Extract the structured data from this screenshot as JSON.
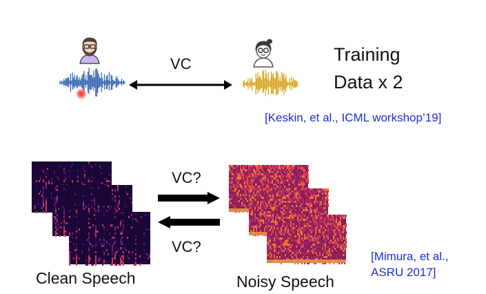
{
  "top": {
    "vc_label": "VC",
    "training_line1": "Training",
    "training_line2": "Data x 2",
    "citation": "[Keskin, et al., ICML workshop’19]"
  },
  "bottom": {
    "vc_top_label": "VC?",
    "vc_bottom_label": "VC?",
    "clean_label": "Clean Speech",
    "noisy_label": "Noisy Speech",
    "citation_line1": "[Mimura, et al.,",
    "citation_line2": "ASRU 2017]"
  },
  "colors": {
    "male_wave": "#2f5fae",
    "female_wave": "#d9a21a",
    "citation": "#1a2fd6",
    "recording_dot": "#e02020"
  },
  "icons": [
    "man-avatar-icon",
    "woman-avatar-icon",
    "double-arrow-icon",
    "right-arrow-icon",
    "left-arrow-icon"
  ]
}
